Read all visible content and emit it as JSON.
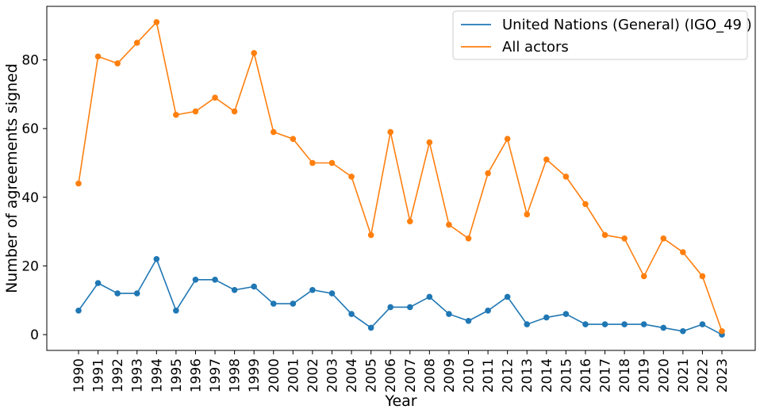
{
  "chart_data": {
    "type": "line",
    "title": "",
    "xlabel": "Year",
    "ylabel": "Number of agreements signed",
    "x": [
      "1990",
      "1991",
      "1992",
      "1993",
      "1994",
      "1995",
      "1996",
      "1997",
      "1998",
      "1999",
      "2000",
      "2001",
      "2002",
      "2003",
      "2004",
      "2005",
      "2006",
      "2007",
      "2008",
      "2009",
      "2010",
      "2011",
      "2012",
      "2013",
      "2014",
      "2015",
      "2016",
      "2017",
      "2018",
      "2019",
      "2020",
      "2021",
      "2022",
      "2023"
    ],
    "ylim": [
      -4.6,
      95.6
    ],
    "yticks": [
      0,
      20,
      40,
      60,
      80
    ],
    "grid": false,
    "legend_position": "top-right",
    "series": [
      {
        "name": "United Nations (General) (IGO_49 )",
        "color": "#1f77b4",
        "values": [
          7,
          15,
          12,
          12,
          22,
          7,
          16,
          16,
          13,
          14,
          9,
          9,
          13,
          12,
          6,
          2,
          8,
          8,
          11,
          6,
          4,
          7,
          11,
          3,
          5,
          6,
          3,
          3,
          3,
          3,
          2,
          1,
          3,
          0
        ]
      },
      {
        "name": "All actors",
        "color": "#ff7f0e",
        "values": [
          44,
          81,
          79,
          85,
          91,
          64,
          65,
          69,
          65,
          82,
          59,
          57,
          50,
          50,
          46,
          29,
          59,
          33,
          56,
          32,
          28,
          47,
          57,
          35,
          51,
          46,
          38,
          29,
          28,
          17,
          28,
          24,
          17,
          1
        ]
      }
    ]
  }
}
